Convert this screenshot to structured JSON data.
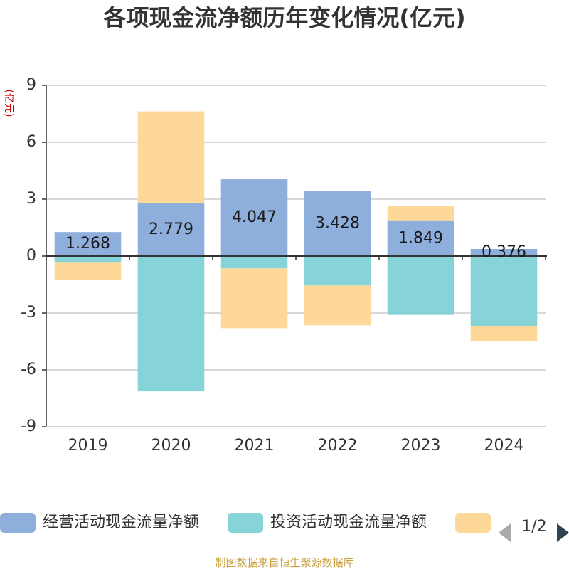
{
  "chart_data": {
    "type": "bar",
    "stacked": true,
    "title": "各项现金流净额历年变化情况(亿元)",
    "ylabel": "(亿元)",
    "categories": [
      "2019",
      "2020",
      "2021",
      "2022",
      "2023",
      "2024"
    ],
    "ylim": [
      -9,
      9
    ],
    "yticks": [
      9,
      6,
      3,
      0,
      -3,
      -6,
      -9
    ],
    "grid": true,
    "series": [
      {
        "name": "经营活动现金流量净额",
        "color": "#8eaedb",
        "values": [
          1.268,
          2.779,
          4.047,
          3.428,
          1.849,
          0.376
        ],
        "labels": [
          "1.268",
          "2.779",
          "4.047",
          "3.428",
          "1.849",
          "0.376"
        ]
      },
      {
        "name": "投资活动现金流量净额",
        "color": "#86d4d8",
        "values": [
          -0.35,
          -7.13,
          -0.65,
          -1.55,
          -3.1,
          -3.7
        ]
      },
      {
        "name": "",
        "color": "#fdd898",
        "values": [
          -0.9,
          4.85,
          -3.15,
          -2.1,
          0.8,
          -0.8
        ]
      }
    ],
    "legend": {
      "position": "bottom",
      "page": "1/2"
    }
  },
  "source": "制图数据来自恒生聚源数据库"
}
